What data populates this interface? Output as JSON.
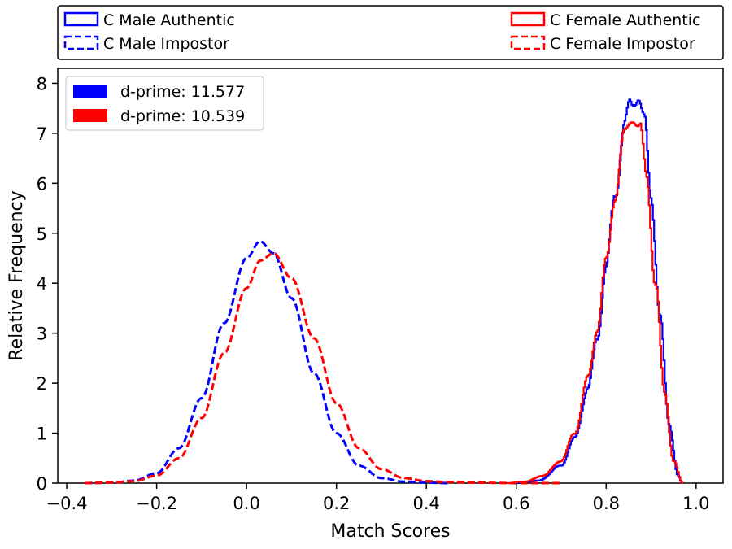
{
  "chart_data": {
    "type": "line",
    "title": "",
    "xlabel": "Match Scores",
    "ylabel": "Relative Frequency",
    "xlim": [
      -0.42,
      1.06
    ],
    "ylim": [
      0,
      8.3
    ],
    "xticks": [
      -0.4,
      -0.2,
      0.0,
      0.2,
      0.4,
      0.6,
      0.8,
      1.0
    ],
    "xtick_labels": [
      "−0.4",
      "−0.2",
      "0.0",
      "0.2",
      "0.4",
      "0.6",
      "0.8",
      "1.0"
    ],
    "yticks": [
      0,
      1,
      2,
      3,
      4,
      5,
      6,
      7,
      8
    ],
    "ytick_labels": [
      "0",
      "1",
      "2",
      "3",
      "4",
      "5",
      "6",
      "7",
      "8"
    ],
    "grid": false,
    "outer_legend": {
      "placement": "above",
      "entries": [
        {
          "label": "C Male Authentic",
          "color": "#0000ff",
          "style": "solid"
        },
        {
          "label": "C Male Impostor",
          "color": "#0000ff",
          "style": "dashed"
        },
        {
          "label": "C Female Authentic",
          "color": "#ff0000",
          "style": "solid"
        },
        {
          "label": "C Female Impostor",
          "color": "#ff0000",
          "style": "dashed"
        }
      ]
    },
    "inner_legend": {
      "placement": "top-left",
      "entries": [
        {
          "label": "d-prime: 11.577",
          "color": "#0000ff"
        },
        {
          "label": "d-prime: 10.539",
          "color": "#ff0000"
        }
      ]
    },
    "series": [
      {
        "name": "C Male Authentic",
        "color": "#0000ff",
        "style": "solid",
        "kind": "authentic",
        "x": [
          0.6,
          0.65,
          0.7,
          0.73,
          0.76,
          0.78,
          0.8,
          0.82,
          0.84,
          0.855,
          0.87,
          0.885,
          0.9,
          0.92,
          0.94,
          0.96,
          0.97
        ],
        "y": [
          0.0,
          0.05,
          0.35,
          0.9,
          1.9,
          2.9,
          4.3,
          5.8,
          7.1,
          7.6,
          7.8,
          7.2,
          5.8,
          3.3,
          1.2,
          0.15,
          0.0
        ]
      },
      {
        "name": "C Male Impostor",
        "color": "#0000ff",
        "style": "dashed",
        "kind": "impostor",
        "x": [
          -0.36,
          -0.3,
          -0.25,
          -0.2,
          -0.15,
          -0.1,
          -0.05,
          0.0,
          0.03,
          0.06,
          0.1,
          0.15,
          0.2,
          0.25,
          0.3,
          0.35,
          0.4,
          0.45
        ],
        "y": [
          0.0,
          0.01,
          0.05,
          0.2,
          0.7,
          1.7,
          3.2,
          4.5,
          4.84,
          4.6,
          3.7,
          2.2,
          1.0,
          0.35,
          0.1,
          0.03,
          0.01,
          0.0
        ]
      },
      {
        "name": "C Female Authentic",
        "color": "#ff0000",
        "style": "solid",
        "kind": "authentic",
        "x": [
          0.58,
          0.62,
          0.66,
          0.7,
          0.73,
          0.76,
          0.78,
          0.8,
          0.82,
          0.84,
          0.86,
          0.875,
          0.89,
          0.91,
          0.93,
          0.95,
          0.97
        ],
        "y": [
          0.0,
          0.03,
          0.15,
          0.45,
          1.0,
          2.1,
          3.1,
          4.4,
          5.8,
          6.9,
          7.4,
          7.1,
          6.1,
          4.0,
          1.8,
          0.45,
          0.0
        ]
      },
      {
        "name": "C Female Impostor",
        "color": "#ff0000",
        "style": "dashed",
        "kind": "impostor",
        "x": [
          -0.36,
          -0.3,
          -0.25,
          -0.2,
          -0.15,
          -0.1,
          -0.05,
          0.0,
          0.03,
          0.06,
          0.1,
          0.15,
          0.2,
          0.25,
          0.3,
          0.35,
          0.4,
          0.45,
          0.5,
          0.6,
          0.7
        ],
        "y": [
          0.0,
          0.01,
          0.04,
          0.15,
          0.5,
          1.3,
          2.6,
          3.9,
          4.45,
          4.6,
          4.1,
          2.9,
          1.6,
          0.7,
          0.28,
          0.1,
          0.04,
          0.02,
          0.01,
          0.0,
          0.0
        ]
      }
    ]
  }
}
